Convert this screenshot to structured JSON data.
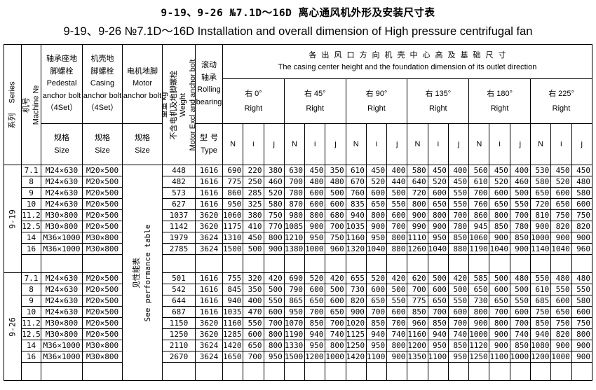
{
  "title": {
    "zh": "9-19、9-26 №7.1D～16D 离心通风机外形及安装尺寸表",
    "en": "9-19、9-26 №7.1D～16D Installation and overall dimension of High pressure centrifugal fan"
  },
  "header": {
    "series": {
      "zh": "系列",
      "en": "Series"
    },
    "machine": {
      "zh": "机号",
      "en": "Machine №"
    },
    "pedestal": {
      "zh1": "轴承座地",
      "zh2": "脚螺栓",
      "en1": "Pedestal",
      "en2": "anchor bolt",
      "set": "（4Set）"
    },
    "casing": {
      "zh1": "机壳地",
      "zh2": "脚螺栓",
      "en1": "Casing",
      "en2": "anchor bolt",
      "set": "（4Set）"
    },
    "motor": {
      "zh": "电机地脚",
      "en1": "Motor",
      "en2": "anchor bolt"
    },
    "size": {
      "zh": "规格",
      "en": "Size"
    },
    "weight": {
      "l1": "重量 kg",
      "l2": "不含电机及地脚螺栓",
      "l3": "Weight",
      "l4": "Motor Excl and anchor bolt"
    },
    "bearing": {
      "zh1": "滚动",
      "zh2": "轴承",
      "en1": "Rolling",
      "en2": "bearing",
      "sub_zh": "型号",
      "sub_en": "Type"
    },
    "outlet": {
      "zh": "各出风口方向机壳中心高及基础尺寸",
      "en": "The casing center height and the foundation dimension of its outlet direction"
    },
    "directions": [
      {
        "zh": "右 0°",
        "en": "Right"
      },
      {
        "zh": "右 45°",
        "en": "Right"
      },
      {
        "zh": "右 90°",
        "en": "Right"
      },
      {
        "zh": "右 135°",
        "en": "Right"
      },
      {
        "zh": "右 180°",
        "en": "Right"
      },
      {
        "zh": "右 225°",
        "en": "Right"
      }
    ],
    "nij": [
      "N",
      "i",
      "j"
    ]
  },
  "see_performance": {
    "zh": "见性能表",
    "en": "See performance table"
  },
  "groups": [
    {
      "series": "9-19",
      "rows": [
        {
          "no": "7.1",
          "pedestal": "M24×630",
          "casing": "M20×500",
          "weight": "448",
          "bearing": "1616",
          "dims": [
            690,
            220,
            380,
            630,
            450,
            350,
            610,
            450,
            400,
            580,
            450,
            400,
            560,
            450,
            400,
            530,
            450,
            450
          ]
        },
        {
          "no": "8",
          "pedestal": "M24×630",
          "casing": "M20×500",
          "weight": "482",
          "bearing": "1616",
          "dims": [
            775,
            250,
            460,
            700,
            480,
            480,
            670,
            520,
            440,
            640,
            520,
            450,
            610,
            520,
            460,
            580,
            520,
            480
          ]
        },
        {
          "no": "9",
          "pedestal": "M24×630",
          "casing": "M20×500",
          "weight": "573",
          "bearing": "1616",
          "dims": [
            860,
            285,
            520,
            780,
            600,
            500,
            760,
            600,
            500,
            720,
            600,
            550,
            700,
            600,
            500,
            650,
            600,
            580
          ]
        },
        {
          "no": "10",
          "pedestal": "M24×630",
          "casing": "M20×500",
          "weight": "627",
          "bearing": "1616",
          "dims": [
            950,
            325,
            580,
            870,
            600,
            600,
            835,
            650,
            550,
            800,
            650,
            550,
            760,
            650,
            550,
            720,
            650,
            600
          ]
        },
        {
          "no": "11.2",
          "pedestal": "M30×800",
          "casing": "M20×500",
          "weight": "1037",
          "bearing": "3620",
          "dims": [
            1060,
            380,
            750,
            980,
            800,
            680,
            940,
            800,
            600,
            900,
            800,
            700,
            860,
            800,
            700,
            810,
            750,
            750
          ]
        },
        {
          "no": "12.5",
          "pedestal": "M30×800",
          "casing": "M20×500",
          "weight": "1142",
          "bearing": "3620",
          "dims": [
            1175,
            410,
            770,
            1085,
            900,
            700,
            1035,
            900,
            700,
            990,
            900,
            780,
            945,
            850,
            780,
            900,
            820,
            820
          ]
        },
        {
          "no": "14",
          "pedestal": "M36×1000",
          "casing": "M30×800",
          "weight": "1979",
          "bearing": "3624",
          "dims": [
            1310,
            450,
            800,
            1210,
            950,
            750,
            1160,
            950,
            800,
            1110,
            950,
            850,
            1060,
            900,
            850,
            1000,
            900,
            900
          ]
        },
        {
          "no": "16",
          "pedestal": "M36×1000",
          "casing": "M30×800",
          "weight": "2785",
          "bearing": "3624",
          "dims": [
            1500,
            500,
            900,
            1380,
            1000,
            960,
            1320,
            1040,
            880,
            1260,
            1040,
            880,
            1190,
            1040,
            900,
            1140,
            1040,
            960
          ]
        }
      ]
    },
    {
      "series": "9-26",
      "rows": [
        {
          "no": "7.1",
          "pedestal": "M24×630",
          "casing": "M20×500",
          "weight": "501",
          "bearing": "1616",
          "dims": [
            755,
            320,
            420,
            690,
            520,
            420,
            655,
            520,
            420,
            620,
            500,
            420,
            585,
            500,
            480,
            550,
            480,
            480
          ]
        },
        {
          "no": "8",
          "pedestal": "M24×630",
          "casing": "M20×500",
          "weight": "542",
          "bearing": "1616",
          "dims": [
            845,
            350,
            500,
            790,
            600,
            500,
            730,
            600,
            500,
            700,
            600,
            500,
            650,
            600,
            500,
            610,
            550,
            550
          ]
        },
        {
          "no": "9",
          "pedestal": "M24×630",
          "casing": "M20×500",
          "weight": "644",
          "bearing": "1616",
          "dims": [
            940,
            400,
            550,
            865,
            650,
            600,
            820,
            650,
            550,
            775,
            650,
            550,
            730,
            650,
            550,
            685,
            600,
            580
          ]
        },
        {
          "no": "10",
          "pedestal": "M24×630",
          "casing": "M20×500",
          "weight": "687",
          "bearing": "1616",
          "dims": [
            1035,
            470,
            600,
            950,
            700,
            650,
            900,
            700,
            600,
            850,
            700,
            600,
            800,
            700,
            600,
            750,
            650,
            600
          ]
        },
        {
          "no": "11.2",
          "pedestal": "M30×800",
          "casing": "M20×500",
          "weight": "1150",
          "bearing": "3620",
          "dims": [
            1160,
            550,
            700,
            1070,
            850,
            700,
            1020,
            850,
            700,
            960,
            850,
            700,
            900,
            800,
            700,
            850,
            750,
            750
          ]
        },
        {
          "no": "12.5",
          "pedestal": "M30×800",
          "casing": "M20×500",
          "weight": "1250",
          "bearing": "3620",
          "dims": [
            1285,
            600,
            800,
            1190,
            940,
            740,
            1125,
            940,
            740,
            1160,
            940,
            740,
            1000,
            900,
            740,
            940,
            820,
            800
          ]
        },
        {
          "no": "14",
          "pedestal": "M36×1000",
          "casing": "M30×800",
          "weight": "2110",
          "bearing": "3624",
          "dims": [
            1420,
            650,
            800,
            1330,
            950,
            800,
            1250,
            950,
            800,
            1200,
            950,
            850,
            1120,
            900,
            850,
            1080,
            900,
            900
          ]
        },
        {
          "no": "16",
          "pedestal": "M36×1000",
          "casing": "M30×800",
          "weight": "2670",
          "bearing": "3624",
          "dims": [
            1650,
            700,
            950,
            1500,
            1200,
            1000,
            1420,
            1100,
            900,
            1350,
            1100,
            950,
            1250,
            1100,
            1000,
            1200,
            1000,
            900
          ]
        }
      ]
    }
  ]
}
